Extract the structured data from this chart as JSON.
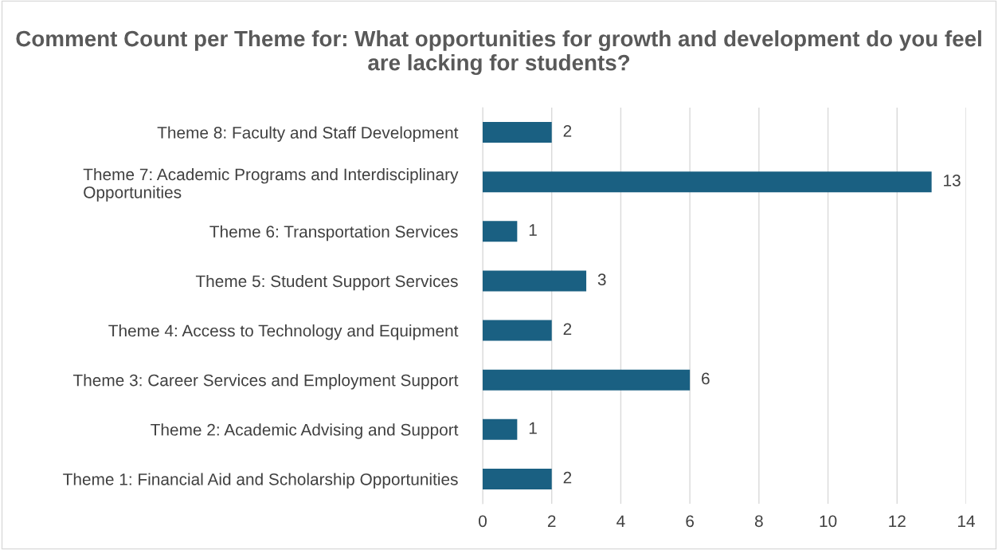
{
  "chart_data": {
    "type": "bar",
    "orientation": "horizontal",
    "title": "Comment Count per Theme for: What opportunities for growth and development do you feel are lacking for students?",
    "categories": [
      "Theme 8: Faculty and Staff Development",
      "Theme 7: Academic Programs and Interdisciplinary\nOpportunities",
      "Theme 6: Transportation Services",
      "Theme 5: Student Support Services",
      "Theme 4: Access to Technology and Equipment",
      "Theme 3: Career Services and Employment Support",
      "Theme 2: Academic Advising and Support",
      "Theme 1: Financial Aid and Scholarship Opportunities"
    ],
    "values": [
      2,
      13,
      1,
      3,
      2,
      6,
      1,
      2
    ],
    "color": "#1a6082",
    "xlim": [
      0,
      14
    ],
    "xticks": [
      0,
      2,
      4,
      6,
      8,
      10,
      12,
      14
    ],
    "grid": "x",
    "data_labels": true,
    "legend": false
  }
}
